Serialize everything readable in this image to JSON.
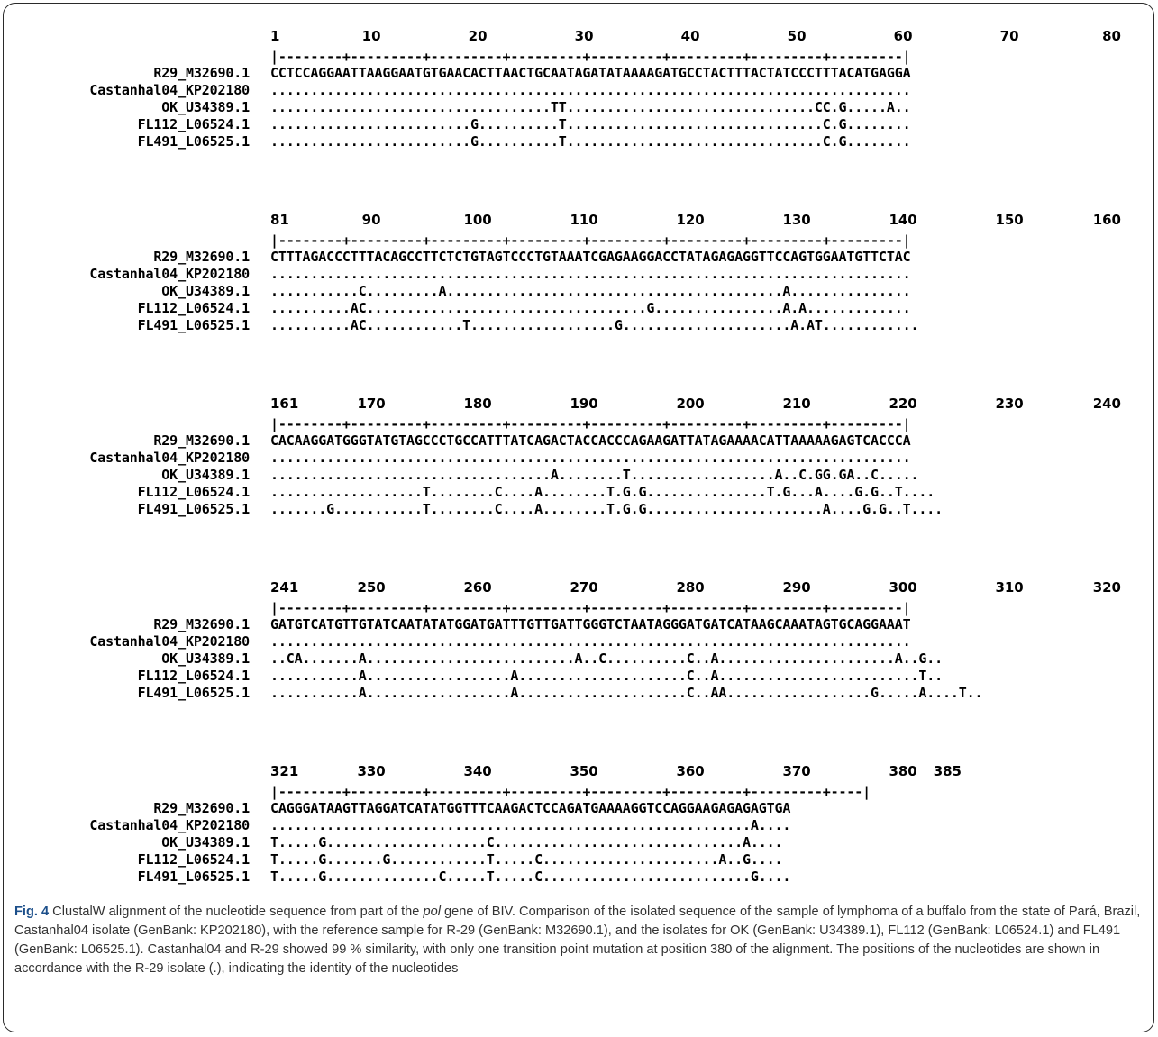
{
  "figure": {
    "label": "Fig. 4",
    "caption_parts": [
      "ClustalW alignment of the nucleotide sequence from part of the ",
      "pol",
      " gene of BIV. Comparison of the isolated sequence of the sample of lymphoma of a buffalo from the state of Pará, Brazil, Castanhal04 isolate (GenBank: KP202180), with the reference sample for R-29 (GenBank: M32690.1), and the isolates for OK (GenBank: U34389.1), FL112 (GenBank: L06524.1) and FL491 (GenBank: L06525.1). Castanhal04 and R-29 showed 99 % similarity, with only one transition point mutation at position 380 of the alignment. The positions of the nucleotides are shown in accordance with the R-29 isolate (.), indicating the identity of the nucleotides"
    ]
  },
  "alignment": {
    "sequence_names": [
      "R29_M32690.1",
      "Castanhal04_KP202180",
      "OK_U34389.1",
      "FL112_L06524.1",
      "FL491_L06525.1"
    ],
    "blocks": [
      {
        "positions": [
          "1",
          "10",
          "20",
          "30",
          "40",
          "50",
          "60",
          "70",
          "80"
        ],
        "ruler": "|--------+---------+---------+---------+---------+---------+---------+---------|",
        "rows": [
          "CCTCCAGGAATTAAGGAATGTGAACACTTAACTGCAATAGATATAAAAGATGCCTACTTTACTATCCCTTTACATGAGGA",
          "................................................................................",
          "...................................TT...............................CC.G.....A..",
          ".........................G..........T................................C.G........",
          ".........................G..........T................................C.G........"
        ]
      },
      {
        "positions": [
          "81",
          "90",
          "100",
          "110",
          "120",
          "130",
          "140",
          "150",
          "160"
        ],
        "ruler": "|--------+---------+---------+---------+---------+---------+---------+---------|",
        "rows": [
          "CTTTAGACCCTTTACAGCCTTCTCTGTAGTCCCTGTAAATCGAGAAGGACCTATAGAGAGGTTCCAGTGGAATGTTCTAC",
          "................................................................................",
          "...........C.........A..........................................A...............",
          "..........AC...................................G................A.A.............",
          "..........AC............T..................G.....................A.AT............"
        ]
      },
      {
        "positions": [
          "161",
          "170",
          "180",
          "190",
          "200",
          "210",
          "220",
          "230",
          "240"
        ],
        "ruler": "|--------+---------+---------+---------+---------+---------+---------+---------|",
        "rows": [
          "CACAAGGATGGGTATGTAGCCCTGCCATTTATCAGACTACCACCCAGAAGATTATAGAAAACATTAAAAAGAGTCACCCA",
          "................................................................................",
          "...................................A........T..................A..C.GG.GA..C.....",
          "...................T........C....A........T.G.G...............T.G...A....G.G..T....",
          ".......G...........T........C....A........T.G.G......................A....G.G..T...."
        ]
      },
      {
        "positions": [
          "241",
          "250",
          "260",
          "270",
          "280",
          "290",
          "300",
          "310",
          "320"
        ],
        "ruler": "|--------+---------+---------+---------+---------+---------+---------+---------|",
        "rows": [
          "GATGTCATGTTGTATCAATATATGGATGATTTGTTGATTGGGTCTAATAGGGATGATCATAAGCAAATAGTGCAGGAAAT",
          "................................................................................",
          "..CA.......A..........................A..C..........C..A......................A..G..",
          "...........A..................A.....................C..A.........................T..",
          "...........A..................A.....................C..AA..................G.....A....T.."
        ]
      },
      {
        "positions": [
          "321",
          "330",
          "340",
          "350",
          "360",
          "370",
          "380",
          "385"
        ],
        "ruler": "|--------+---------+---------+---------+---------+---------+---------+----|",
        "rows": [
          "CAGGGATAAGTTAGGATCATATGGTTTCAAGACTCCAGATGAAAAGGTCCAGGAAGAGAGAGTGA",
          "............................................................A....",
          "T.....G....................C...............................A....",
          "T.....G.......G............T.....C......................A..G....",
          "T.....G..............C.....T.....C..........................G...."
        ]
      }
    ]
  }
}
